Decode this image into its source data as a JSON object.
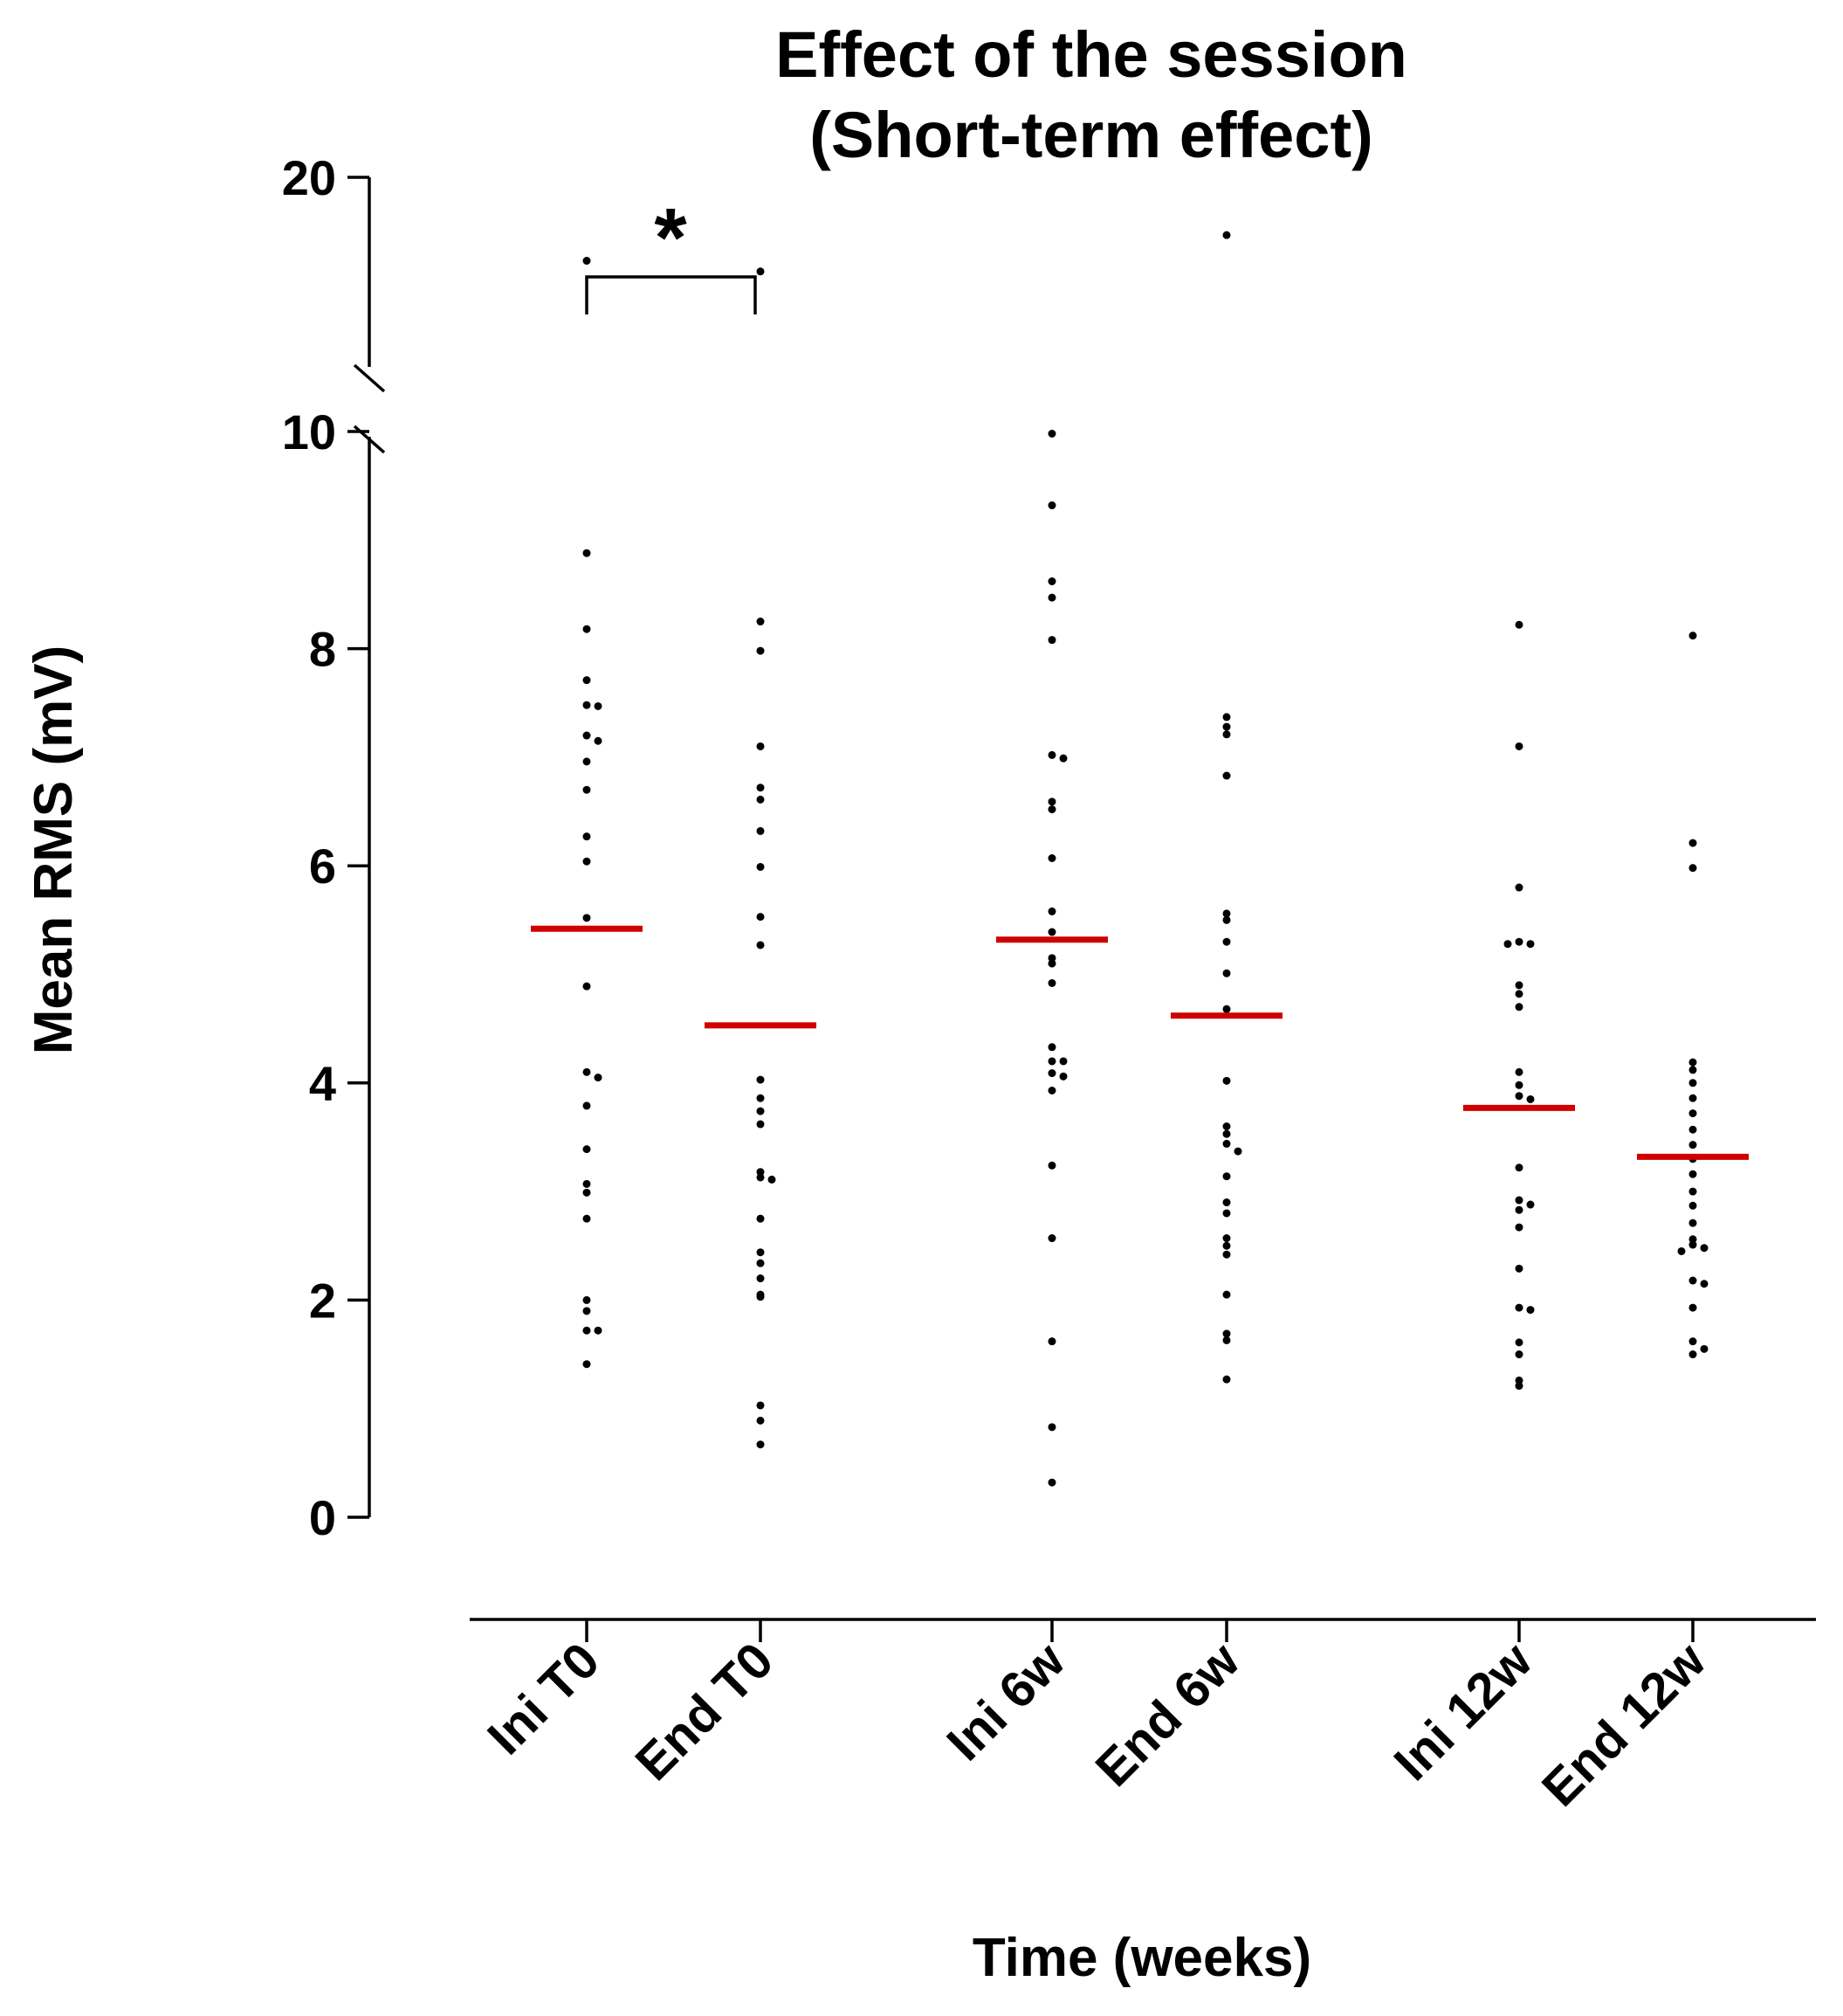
{
  "chart_data": {
    "type": "scatter",
    "title": [
      "Effect of the session",
      "(Short-term effect)"
    ],
    "xlabel": "Time (weeks)",
    "ylabel": "Mean RMS (mV)",
    "ylim": [
      0,
      20
    ],
    "y_axis_break": [
      10,
      20
    ],
    "yticks": [
      "0",
      "2",
      "4",
      "6",
      "8",
      "10",
      "20"
    ],
    "grid": false,
    "categories": [
      "Ini T0",
      "End T0",
      "Ini 6w",
      "End 6w",
      "Ini 12w",
      "End 12w"
    ],
    "series": [
      {
        "name": "Ini T0",
        "mean": 5.42,
        "values": [
          16.1,
          8.88,
          8.18,
          7.71,
          7.48,
          7.47,
          7.2,
          7.15,
          6.96,
          6.7,
          6.27,
          6.04,
          5.52,
          4.89,
          4.1,
          4.05,
          3.79,
          3.39,
          3.07,
          2.99,
          2.75,
          2.0,
          1.9,
          1.72,
          1.72,
          1.41
        ]
      },
      {
        "name": "End T0",
        "mean": 4.53,
        "values": [
          15.6,
          8.25,
          7.98,
          7.1,
          6.72,
          6.61,
          6.32,
          5.99,
          5.53,
          5.27,
          4.03,
          3.86,
          3.74,
          3.62,
          3.18,
          3.13,
          3.11,
          2.75,
          2.44,
          2.34,
          2.2,
          2.05,
          2.03,
          1.03,
          0.89,
          0.67
        ]
      },
      {
        "name": "Ini 6w",
        "mean": 5.32,
        "values": [
          9.98,
          9.32,
          8.62,
          8.47,
          8.08,
          7.02,
          6.99,
          6.59,
          6.52,
          6.07,
          5.58,
          5.39,
          5.15,
          5.1,
          4.92,
          4.33,
          4.2,
          4.2,
          4.09,
          4.06,
          3.93,
          3.24,
          2.57,
          1.62,
          0.83,
          0.32
        ]
      },
      {
        "name": "End 6w",
        "mean": 4.62,
        "values": [
          17.3,
          7.37,
          7.28,
          7.21,
          6.83,
          5.56,
          5.5,
          5.3,
          5.01,
          4.68,
          4.02,
          3.6,
          3.53,
          3.44,
          3.37,
          3.14,
          2.9,
          2.8,
          2.57,
          2.5,
          2.42,
          2.05,
          1.69,
          1.63,
          1.27
        ]
      },
      {
        "name": "Ini 12w",
        "mean": 3.77,
        "values": [
          8.22,
          7.1,
          5.8,
          5.3,
          5.28,
          5.28,
          4.9,
          4.82,
          4.7,
          4.1,
          3.98,
          3.88,
          3.85,
          3.22,
          2.92,
          2.88,
          2.83,
          2.67,
          2.29,
          1.93,
          1.91,
          1.61,
          1.5,
          1.26,
          1.21
        ]
      },
      {
        "name": "End 12w",
        "mean": 3.32,
        "values": [
          8.12,
          6.21,
          5.98,
          4.19,
          4.12,
          4.0,
          3.86,
          3.72,
          3.57,
          3.43,
          3.3,
          3.16,
          3.0,
          2.87,
          2.71,
          2.56,
          2.51,
          2.48,
          2.45,
          2.18,
          2.15,
          1.93,
          1.62,
          1.55,
          1.5
        ]
      }
    ],
    "annotations": [
      {
        "type": "significance",
        "label": "*",
        "between": [
          "Ini T0",
          "End T0"
        ]
      }
    ],
    "colors": {
      "points": "#000000",
      "mean_line": "#d00000",
      "axis": "#000000"
    }
  }
}
